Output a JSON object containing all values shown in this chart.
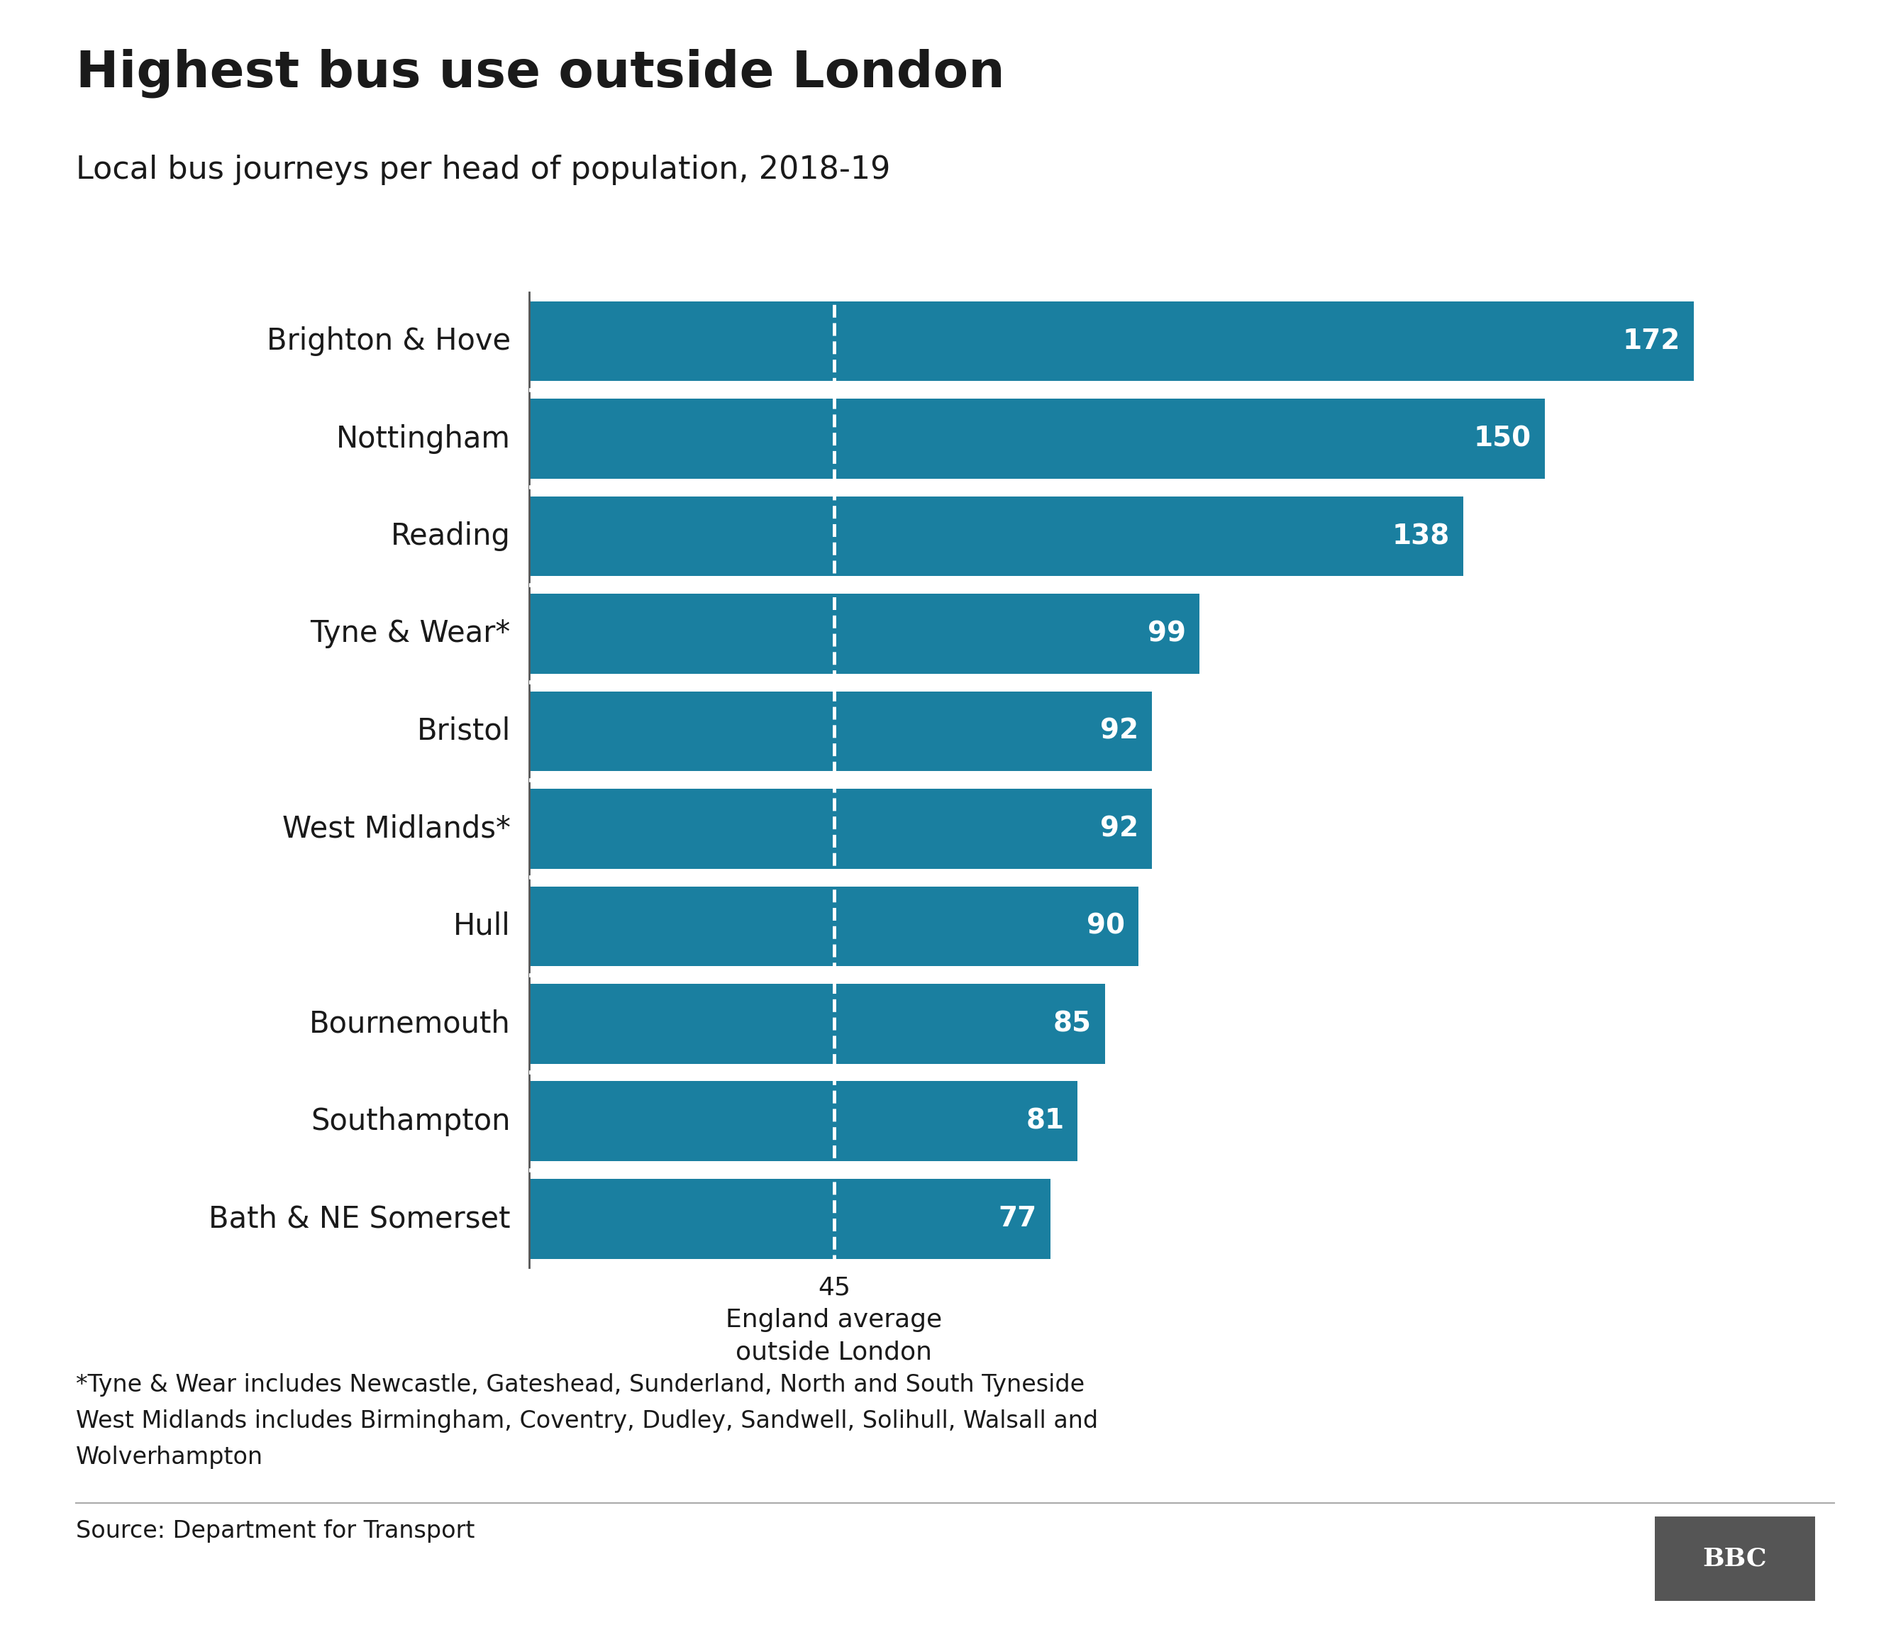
{
  "title": "Highest bus use outside London",
  "subtitle": "Local bus journeys per head of population, 2018-19",
  "categories": [
    "Brighton & Hove",
    "Nottingham",
    "Reading",
    "Tyne & Wear*",
    "Bristol",
    "West Midlands*",
    "Hull",
    "Bournemouth",
    "Southampton",
    "Bath & NE Somerset"
  ],
  "values": [
    172,
    150,
    138,
    99,
    92,
    92,
    90,
    85,
    81,
    77
  ],
  "bar_color": "#1a7fa0",
  "bar_gap_color": "#ffffff",
  "background_color": "#ffffff",
  "text_color": "#1a1a1a",
  "value_label_color": "#ffffff",
  "avg_line_value": 45,
  "source": "Source: Department for Transport",
  "footnote": "*Tyne & Wear includes Newcastle, Gateshead, Sunderland, North and South Tyneside\nWest Midlands includes Birmingham, Coventry, Dudley, Sandwell, Solihull, Walsall and\nWolverhampton",
  "title_fontsize": 52,
  "subtitle_fontsize": 32,
  "label_fontsize": 30,
  "value_fontsize": 28,
  "avg_fontsize": 26,
  "footnote_fontsize": 24,
  "source_fontsize": 24,
  "xlim": [
    0,
    190
  ]
}
